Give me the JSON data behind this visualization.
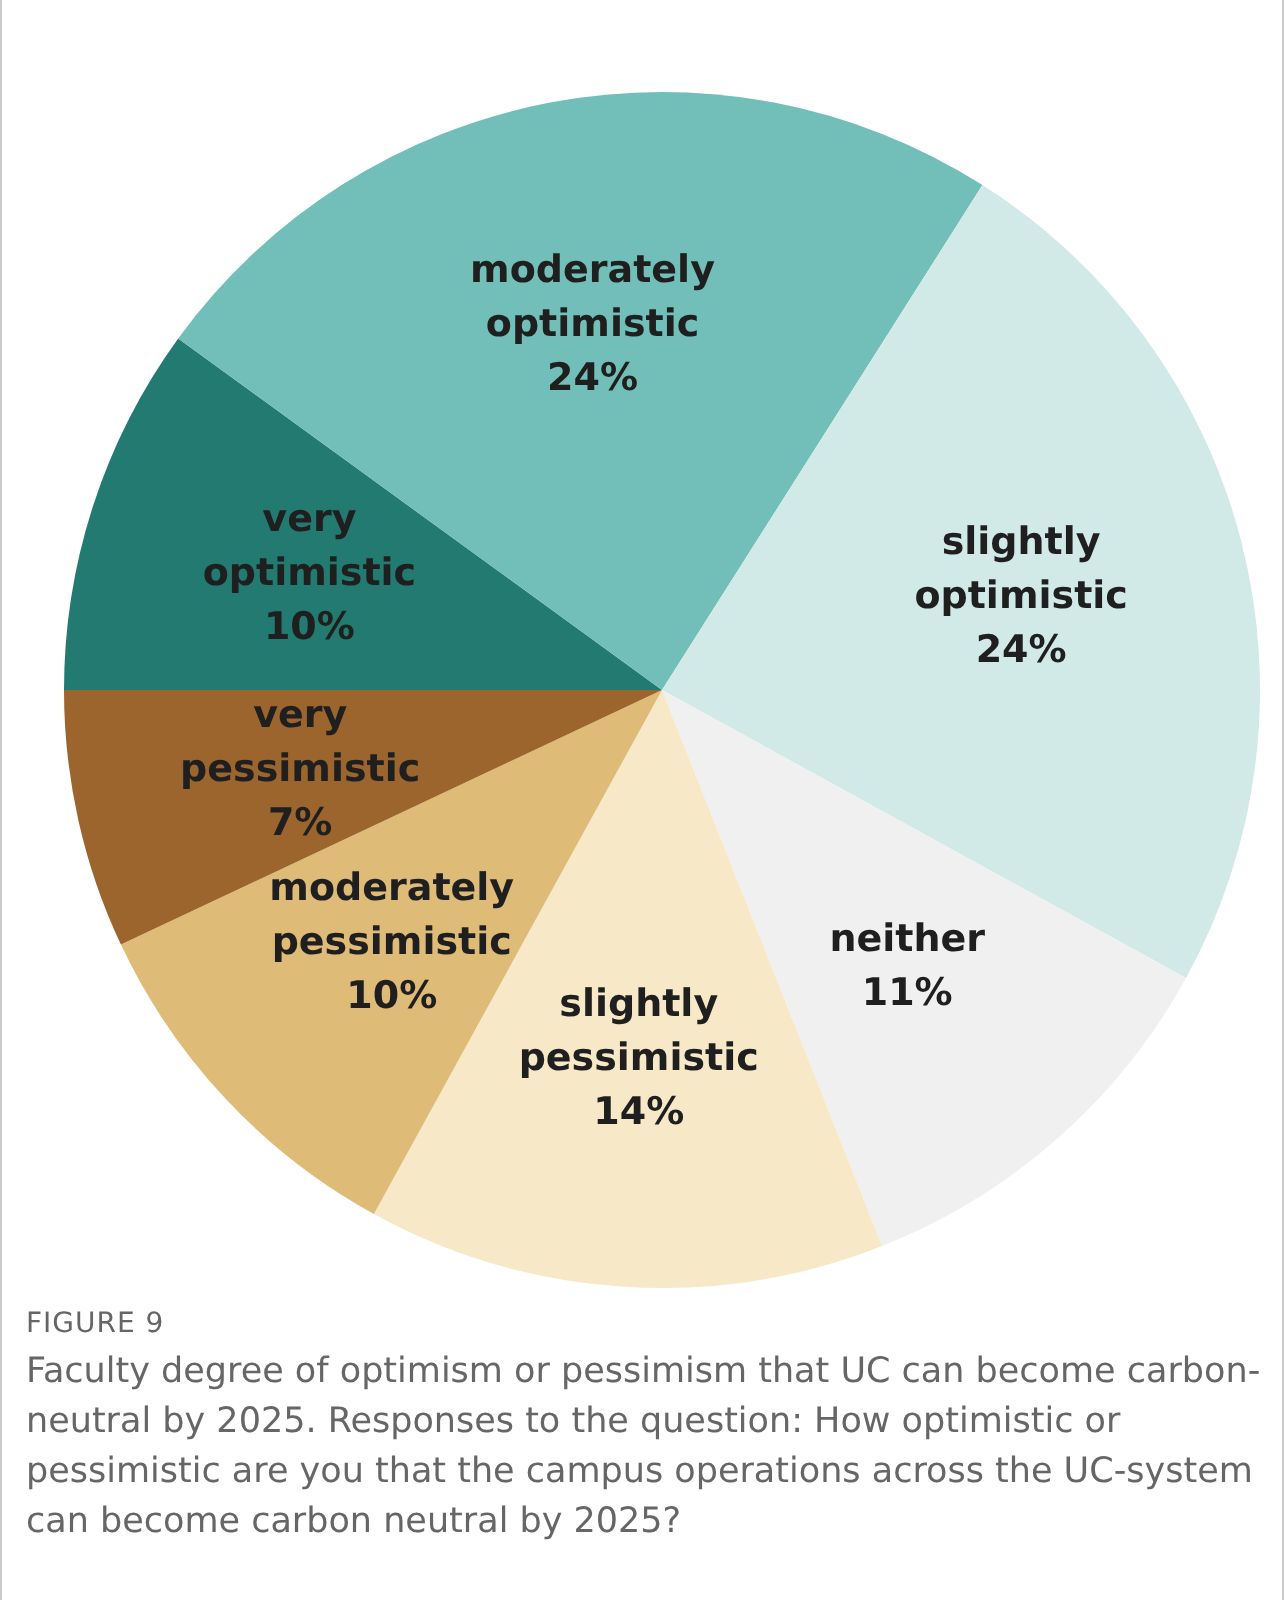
{
  "chart_data": {
    "type": "pie",
    "title": "FIGURE 9",
    "subtitle": "Faculty degree of optimism or pessimism that UC can become carbon-neutral by 2025. Responses to the question: How optimistic or pessimistic are you that the campus operations across the UC-system can become carbon neutral by 2025?",
    "categories": [
      "very optimistic",
      "moderately optimistic",
      "slightly optimistic",
      "neither",
      "slightly pessimistic",
      "moderately pessimistic",
      "very pessimistic"
    ],
    "values": [
      10,
      24,
      24,
      11,
      14,
      10,
      7
    ],
    "value_labels": [
      "10%",
      "24%",
      "24%",
      "11%",
      "14%",
      "10%",
      "7%"
    ],
    "colors": [
      "#237a70",
      "#72bfb9",
      "#d1eae7",
      "#f0f0f0",
      "#f7e9c8",
      "#dfbb78",
      "#9b652d"
    ],
    "legend": false
  }
}
